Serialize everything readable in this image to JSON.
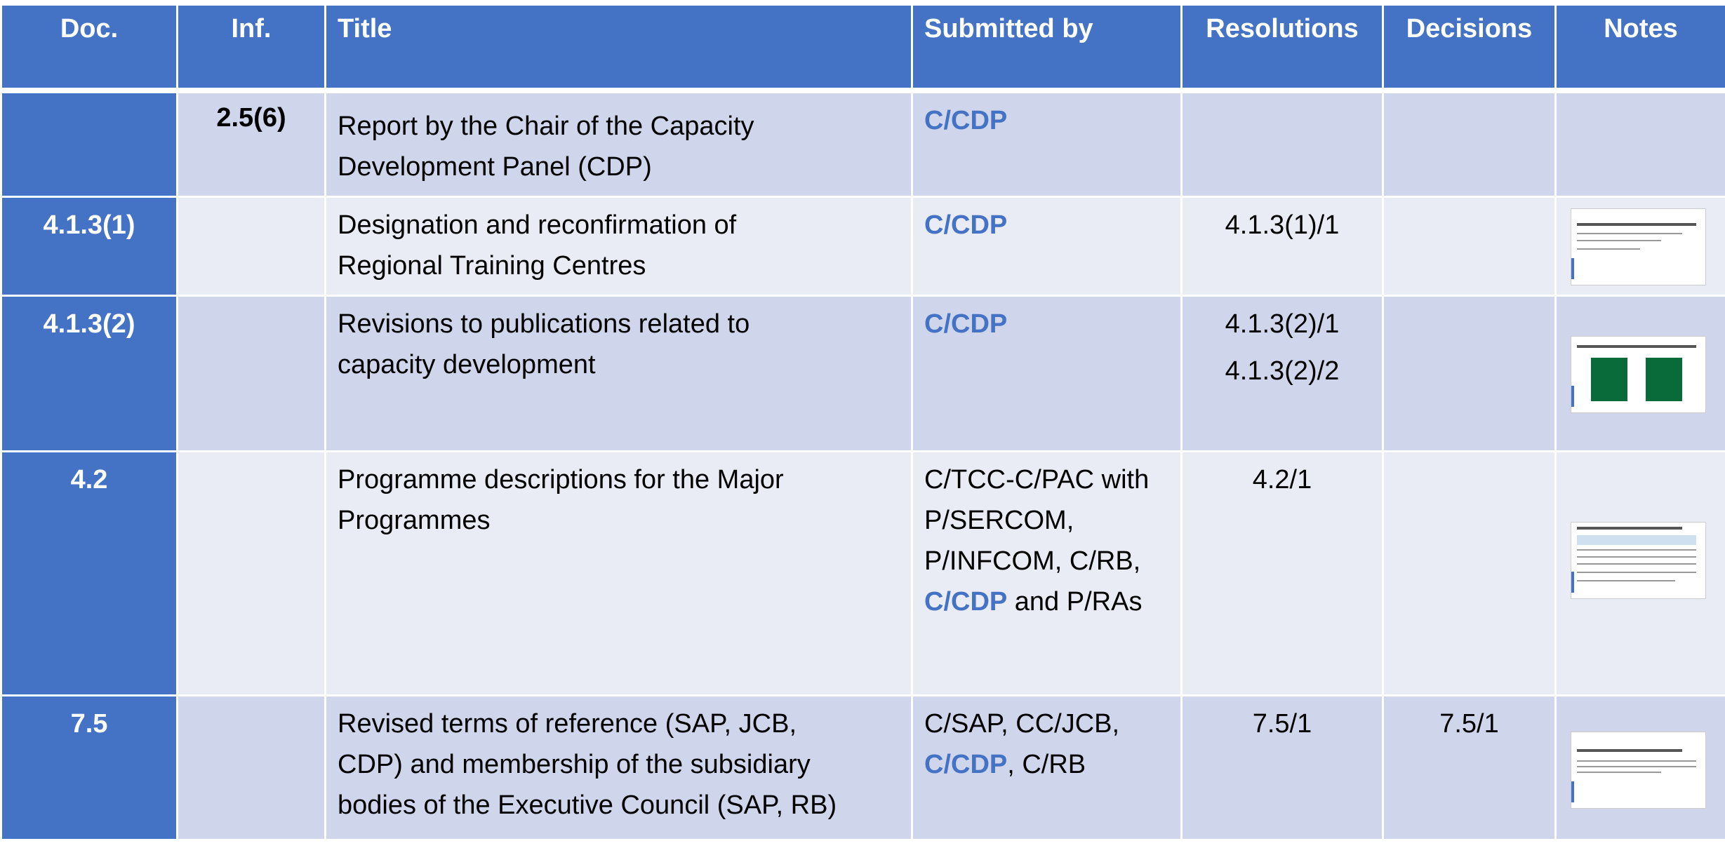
{
  "header": {
    "columns": [
      "Doc.",
      "Inf.",
      "Title",
      "Submitted by",
      "Resolutions",
      "Decisions",
      "Notes"
    ]
  },
  "table": {
    "rows": [
      {
        "inf": "2.5(6)",
        "title": [
          "Report by the Chair of the Capacity",
          "Development Panel (CDP)"
        ],
        "submitted_by": [
          [
            "C/CDP"
          ]
        ]
      },
      {
        "doc": "4.1.3(1)",
        "title": [
          "Designation and reconfirmation of",
          "Regional Training Centres"
        ],
        "submitted_by": [
          [
            "C/CDP"
          ]
        ],
        "resolutions": [
          "4.1.3(1)/1"
        ]
      },
      {
        "doc": "4.1.3(2)",
        "title": [
          "Revisions to publications related to",
          "capacity development"
        ],
        "submitted_by": [
          [
            "C/CDP"
          ]
        ],
        "resolutions": [
          "4.1.3(2)/1",
          "4.1.3(2)/2"
        ]
      },
      {
        "doc": "4.2",
        "title": [
          "Programme descriptions for the Major",
          "Programmes"
        ],
        "submitted_by": [
          [
            "C/TCC-C/PAC with"
          ],
          [
            "P/SERCOM,"
          ],
          [
            "P/INFCOM, C/RB,"
          ],
          [
            "C/CDP",
            " and P/RAs"
          ]
        ],
        "resolutions": [
          "4.2/1"
        ]
      },
      {
        "doc": "7.5",
        "title": [
          "Revised terms of reference (SAP, JCB,",
          "CDP) and membership of the subsidiary",
          "bodies of the Executive Council (SAP, RB)"
        ],
        "submitted_by": [
          [
            "C/SAP, CC/JCB,"
          ],
          [
            "C/CDP",
            ", C/RB"
          ]
        ],
        "resolutions": [
          "7.5/1"
        ],
        "decisions": [
          "7.5/1"
        ]
      }
    ]
  }
}
